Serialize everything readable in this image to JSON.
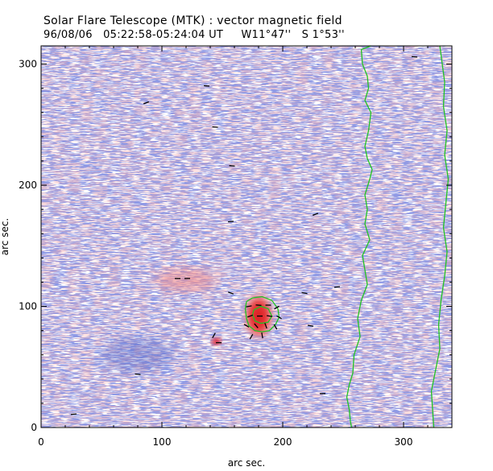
{
  "header": {
    "title": "Solar Flare Telescope (MTK) : vector magnetic field",
    "date": "96/08/06",
    "time_range": "05:22:58-05:24:04 UT",
    "coord_ew": "W11°47''",
    "coord_ns": "S 1°53''"
  },
  "chart_data": {
    "type": "heatmap",
    "title": "Solar Flare Telescope (MTK) : vector magnetic field",
    "xlabel": "arc sec.",
    "ylabel": "arc sec.",
    "xlim": [
      0,
      340
    ],
    "ylim": [
      0,
      315
    ],
    "xticks": [
      0,
      100,
      200,
      300
    ],
    "yticks": [
      0,
      100,
      200,
      300
    ],
    "colors": {
      "positive_polarity": "#e8242a",
      "negative_polarity": "#4a5ec8",
      "limb_contour": "#22c322",
      "vectors": "#000000"
    },
    "regions": [
      {
        "label": "positive sunspot",
        "x": 180,
        "y": 92,
        "rx": 13,
        "ry": 20
      },
      {
        "label": "small positive spot",
        "x": 145,
        "y": 71,
        "rx": 4,
        "ry": 3
      },
      {
        "label": "diffuse positive plage",
        "x": 120,
        "y": 122,
        "rx": 25,
        "ry": 10
      },
      {
        "label": "negative patch",
        "x": 80,
        "y": 60,
        "rx": 30,
        "ry": 15
      }
    ],
    "vectors": [
      {
        "x": 27,
        "y": 11,
        "angle": 5
      },
      {
        "x": 80,
        "y": 44,
        "angle": -5
      },
      {
        "x": 87,
        "y": 268,
        "angle": 20
      },
      {
        "x": 137,
        "y": 282,
        "angle": -5
      },
      {
        "x": 144,
        "y": 248,
        "angle": -5
      },
      {
        "x": 158,
        "y": 216,
        "angle": -5
      },
      {
        "x": 157,
        "y": 170,
        "angle": 5
      },
      {
        "x": 113,
        "y": 123,
        "angle": 0
      },
      {
        "x": 121,
        "y": 123,
        "angle": 0
      },
      {
        "x": 157,
        "y": 111,
        "angle": -20
      },
      {
        "x": 218,
        "y": 111,
        "angle": -10
      },
      {
        "x": 227,
        "y": 176,
        "angle": 20
      },
      {
        "x": 245,
        "y": 116,
        "angle": 5
      },
      {
        "x": 223,
        "y": 84,
        "angle": -10
      },
      {
        "x": 233,
        "y": 28,
        "angle": 0
      },
      {
        "x": 147,
        "y": 70,
        "angle": 0
      },
      {
        "x": 143,
        "y": 76,
        "angle": 60
      },
      {
        "x": 172,
        "y": 100,
        "angle": 10
      },
      {
        "x": 180,
        "y": 101,
        "angle": -5
      },
      {
        "x": 188,
        "y": 101,
        "angle": 0
      },
      {
        "x": 195,
        "y": 99,
        "angle": 30
      },
      {
        "x": 173,
        "y": 92,
        "angle": 20
      },
      {
        "x": 181,
        "y": 92,
        "angle": 0
      },
      {
        "x": 189,
        "y": 92,
        "angle": -10
      },
      {
        "x": 197,
        "y": 91,
        "angle": -30
      },
      {
        "x": 170,
        "y": 84,
        "angle": -30
      },
      {
        "x": 178,
        "y": 84,
        "angle": -50
      },
      {
        "x": 186,
        "y": 84,
        "angle": -70
      },
      {
        "x": 194,
        "y": 83,
        "angle": -60
      },
      {
        "x": 174,
        "y": 75,
        "angle": 60
      },
      {
        "x": 183,
        "y": 76,
        "angle": -80
      },
      {
        "x": 309,
        "y": 306,
        "angle": -5
      }
    ],
    "limb_contours": [
      {
        "points": [
          [
            273,
            315
          ],
          [
            265,
            312
          ],
          [
            266,
            300
          ],
          [
            270,
            290
          ],
          [
            271,
            280
          ],
          [
            268,
            270
          ],
          [
            273,
            260
          ],
          [
            271,
            245
          ],
          [
            268,
            232
          ],
          [
            270,
            222
          ],
          [
            274,
            213
          ],
          [
            272,
            205
          ],
          [
            268,
            192
          ],
          [
            270,
            180
          ],
          [
            268,
            168
          ],
          [
            272,
            155
          ],
          [
            266,
            142
          ],
          [
            268,
            130
          ],
          [
            270,
            118
          ],
          [
            265,
            105
          ],
          [
            262,
            90
          ],
          [
            264,
            75
          ],
          [
            259,
            60
          ],
          [
            258,
            45
          ],
          [
            255,
            35
          ],
          [
            253,
            25
          ],
          [
            255,
            15
          ],
          [
            256,
            5
          ],
          [
            257,
            0
          ]
        ]
      },
      {
        "points": [
          [
            330,
            315
          ],
          [
            332,
            300
          ],
          [
            334,
            285
          ],
          [
            333,
            265
          ],
          [
            336,
            245
          ],
          [
            334,
            225
          ],
          [
            337,
            205
          ],
          [
            335,
            185
          ],
          [
            333,
            165
          ],
          [
            336,
            145
          ],
          [
            334,
            125
          ],
          [
            331,
            105
          ],
          [
            329,
            85
          ],
          [
            330,
            65
          ],
          [
            326,
            45
          ],
          [
            323,
            30
          ],
          [
            324,
            15
          ],
          [
            325,
            0
          ]
        ]
      },
      {
        "points": [
          [
            170,
            104
          ],
          [
            175,
            107
          ],
          [
            183,
            108
          ],
          [
            191,
            105
          ],
          [
            196,
            98
          ],
          [
            197,
            91
          ],
          [
            194,
            85
          ],
          [
            189,
            80
          ],
          [
            183,
            79
          ],
          [
            177,
            80
          ],
          [
            172,
            84
          ],
          [
            170,
            90
          ],
          [
            169,
            98
          ],
          [
            170,
            104
          ]
        ]
      },
      {
        "points": [
          [
            176,
            97
          ],
          [
            182,
            100
          ],
          [
            188,
            98
          ],
          [
            191,
            92
          ],
          [
            188,
            87
          ],
          [
            182,
            86
          ],
          [
            177,
            88
          ],
          [
            175,
            93
          ],
          [
            176,
            97
          ]
        ]
      }
    ]
  }
}
